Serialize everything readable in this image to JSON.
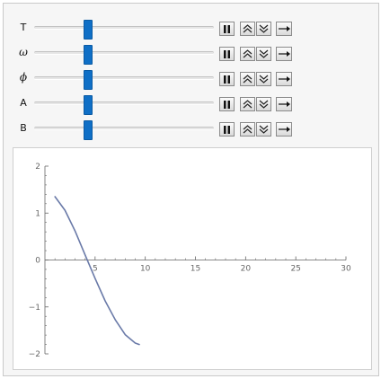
{
  "controls": [
    {
      "label": "T",
      "value": 0.3
    },
    {
      "label": "ω",
      "value": 0.3
    },
    {
      "label": "ϕ",
      "value": 0.3
    },
    {
      "label": "A",
      "value": 0.3
    },
    {
      "label": "B",
      "value": 0.3
    }
  ],
  "icons": {
    "pause": "pause-icon",
    "faster": "double-chevron-up-icon",
    "slower": "double-chevron-down-icon",
    "direction": "arrow-right-icon"
  },
  "colors": {
    "thumb": "#0f6fc6",
    "curve": "#6a7aa8",
    "axis": "#666666"
  },
  "chart_data": {
    "type": "line",
    "xlim": [
      0,
      30
    ],
    "ylim": [
      -2,
      2
    ],
    "x_ticks": [
      5,
      10,
      15,
      20,
      25,
      30
    ],
    "x_tick_labels": [
      "5",
      "10",
      "15",
      "20",
      "25",
      "30"
    ],
    "y_ticks": [
      2,
      1,
      0,
      -1,
      -2
    ],
    "y_tick_labels": [
      "2",
      "1",
      "0",
      "−1",
      "−2"
    ],
    "series": [
      {
        "x": [
          1.0,
          2.0,
          3.0,
          4.0,
          5.0,
          6.0,
          7.0,
          8.0,
          9.0,
          9.4
        ],
        "y": [
          1.35,
          1.06,
          0.62,
          0.11,
          -0.39,
          -0.87,
          -1.27,
          -1.59,
          -1.77,
          -1.8
        ]
      }
    ],
    "grid": false
  }
}
